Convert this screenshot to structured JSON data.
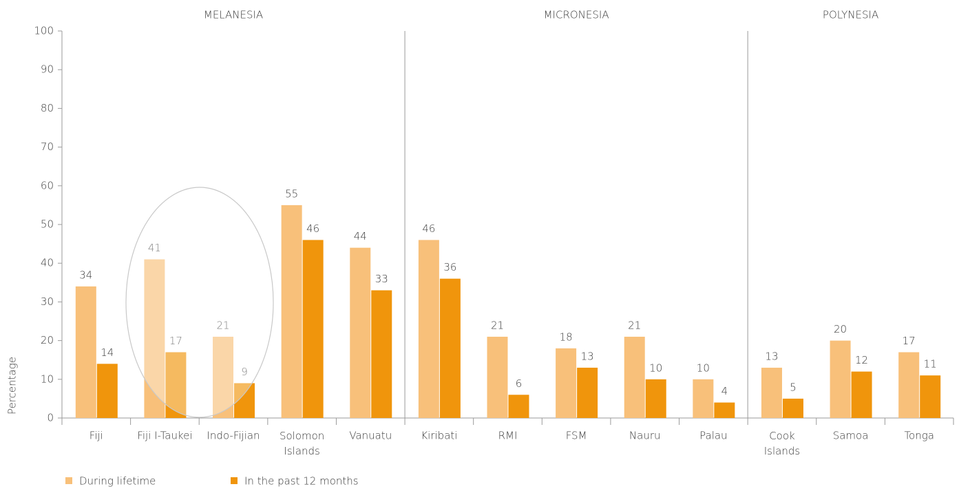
{
  "chart_data": {
    "type": "bar",
    "y_label": "Percentage",
    "categories": [
      "Fiji",
      "Fiji I-Taukei",
      "Indo-Fijian",
      "Solomon\nIslands",
      "Vanuatu",
      "Kiribati",
      "RMI",
      "FSM",
      "Nauru",
      "Palau",
      "Cook\nIslands",
      "Samoa",
      "Tonga"
    ],
    "groups": [
      {
        "name": "MELANESIA",
        "count": 5
      },
      {
        "name": "MICRONESIA",
        "count": 5
      },
      {
        "name": "POLYNESIA",
        "count": 3
      }
    ],
    "series": [
      {
        "name": "During lifetime",
        "color": "#f8c07a",
        "values": [
          34,
          41,
          21,
          55,
          44,
          46,
          21,
          18,
          21,
          10,
          13,
          20,
          17
        ]
      },
      {
        "name": "In the past 12 months",
        "color": "#f0950c",
        "values": [
          14,
          17,
          9,
          46,
          33,
          36,
          6,
          13,
          10,
          4,
          5,
          12,
          11
        ]
      }
    ],
    "ylim": [
      0,
      100
    ],
    "yticks": [
      0,
      10,
      20,
      30,
      40,
      50,
      60,
      70,
      80,
      90,
      100
    ]
  }
}
